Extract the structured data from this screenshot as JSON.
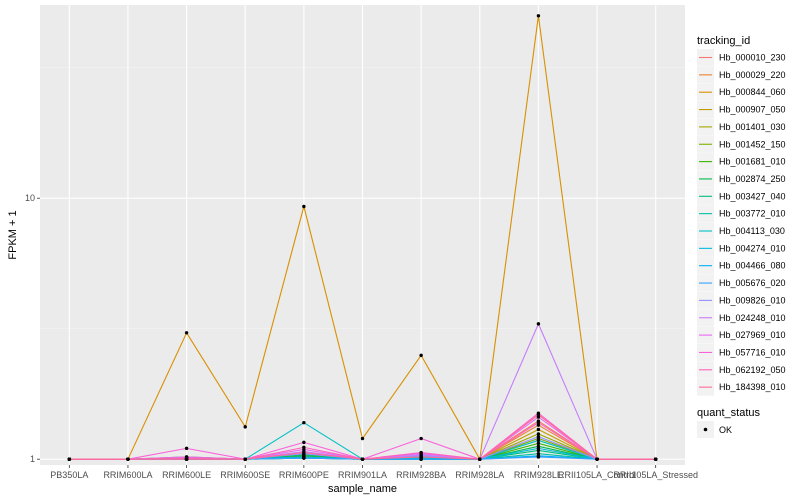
{
  "chart_data": {
    "type": "line",
    "xlabel": "sample_name",
    "ylabel": "FPKM + 1",
    "y_scale": "log10",
    "ylim": [
      0.95,
      55
    ],
    "y_ticks": [
      1,
      10
    ],
    "y_tick_labels": [
      "1",
      "10"
    ],
    "grid": true,
    "legend_position": "right",
    "categories": [
      "PB350LA",
      "RRIM600LA",
      "RRIM600LE",
      "RRIM600SE",
      "RRIM600PE",
      "RRIM901LA",
      "RRIM928BA",
      "RRIM928LA",
      "RRIM928LE",
      "RRII105LA_Control",
      "RRII105LA_Stressed"
    ],
    "legend_title": "tracking_id",
    "series": [
      {
        "name": "Hb_000010_230",
        "color": "#F8766D",
        "values": [
          1,
          1,
          1,
          1,
          1.03,
          1,
          1.02,
          1,
          1.4,
          1,
          1
        ]
      },
      {
        "name": "Hb_000029_220",
        "color": "#EA8331",
        "values": [
          1,
          1,
          1,
          1,
          1.02,
          1,
          1.01,
          1,
          1.35,
          1,
          1
        ]
      },
      {
        "name": "Hb_000844_060",
        "color": "#D89000",
        "values": [
          1,
          1,
          3.05,
          1.33,
          9.3,
          1.2,
          2.5,
          1,
          50,
          1,
          1
        ]
      },
      {
        "name": "Hb_000907_050",
        "color": "#C09B00",
        "values": [
          1,
          1,
          1,
          1,
          1.02,
          1,
          1.01,
          1,
          1.3,
          1,
          1
        ]
      },
      {
        "name": "Hb_001401_030",
        "color": "#A3A500",
        "values": [
          1,
          1,
          1,
          1,
          1.01,
          1,
          1,
          1,
          1.25,
          1,
          1
        ]
      },
      {
        "name": "Hb_001452_150",
        "color": "#7CAE00",
        "values": [
          1,
          1,
          1,
          1,
          1.02,
          1,
          1.02,
          1,
          1.2,
          1,
          1
        ]
      },
      {
        "name": "Hb_001681_010",
        "color": "#39B600",
        "values": [
          1,
          1,
          1.02,
          1,
          1.03,
          1,
          1.03,
          1,
          1.15,
          1,
          1
        ]
      },
      {
        "name": "Hb_002874_250",
        "color": "#00BB4E",
        "values": [
          1,
          1,
          1,
          1,
          1.01,
          1,
          1,
          1,
          1.12,
          1,
          1
        ]
      },
      {
        "name": "Hb_003427_040",
        "color": "#00BF7D",
        "values": [
          1,
          1,
          1.01,
          1,
          1.04,
          1,
          1.02,
          1,
          1.08,
          1,
          1
        ]
      },
      {
        "name": "Hb_003772_010",
        "color": "#00C1A3",
        "values": [
          1,
          1,
          1,
          1,
          1.02,
          1,
          1.01,
          1,
          1.05,
          1,
          1
        ]
      },
      {
        "name": "Hb_004113_030",
        "color": "#00BFC4",
        "values": [
          1,
          1,
          1,
          1,
          1.38,
          1,
          1.01,
          1,
          1.18,
          1,
          1
        ]
      },
      {
        "name": "Hb_004274_010",
        "color": "#00BAE0",
        "values": [
          1,
          1,
          1,
          1,
          1.02,
          1,
          1,
          1,
          1.1,
          1,
          1
        ]
      },
      {
        "name": "Hb_004466_080",
        "color": "#00B0F6",
        "values": [
          1,
          1,
          1,
          1,
          1.01,
          1,
          1,
          1,
          1.03,
          1,
          1
        ]
      },
      {
        "name": "Hb_005676_020",
        "color": "#35A2FF",
        "values": [
          1,
          1,
          1,
          1,
          1.01,
          1,
          1,
          1,
          1.02,
          1,
          1
        ]
      },
      {
        "name": "Hb_009826_010",
        "color": "#9590FF",
        "values": [
          1,
          1,
          1.01,
          1,
          1.05,
          1,
          1.03,
          1,
          1.22,
          1,
          1
        ]
      },
      {
        "name": "Hb_024248_010",
        "color": "#C77CFF",
        "values": [
          1,
          1,
          1,
          1,
          1.07,
          1,
          1.04,
          1,
          3.3,
          1,
          1
        ]
      },
      {
        "name": "Hb_027969_010",
        "color": "#E76BF3",
        "values": [
          1,
          1,
          1.02,
          1,
          1.09,
          1,
          1.05,
          1,
          1.45,
          1,
          1
        ]
      },
      {
        "name": "Hb_057716_010",
        "color": "#FA62DB",
        "values": [
          1,
          1,
          1.1,
          1,
          1.16,
          1,
          1.2,
          1,
          1.5,
          1,
          1
        ]
      },
      {
        "name": "Hb_062192_050",
        "color": "#FF62BC",
        "values": [
          1,
          1,
          1.01,
          1,
          1.11,
          1,
          1.06,
          1,
          1.38,
          1,
          1
        ]
      },
      {
        "name": "Hb_184398_010",
        "color": "#FF6C91",
        "values": [
          1,
          1,
          1,
          1,
          1.06,
          1,
          1.02,
          1,
          1.48,
          1,
          1
        ]
      }
    ],
    "point_legend": {
      "title": "quant_status",
      "label": "OK"
    },
    "colors": {
      "panel": "#EBEBEB",
      "grid_major": "#FFFFFF",
      "grid_minor": "#F3F3F3",
      "point": "#000000"
    }
  }
}
